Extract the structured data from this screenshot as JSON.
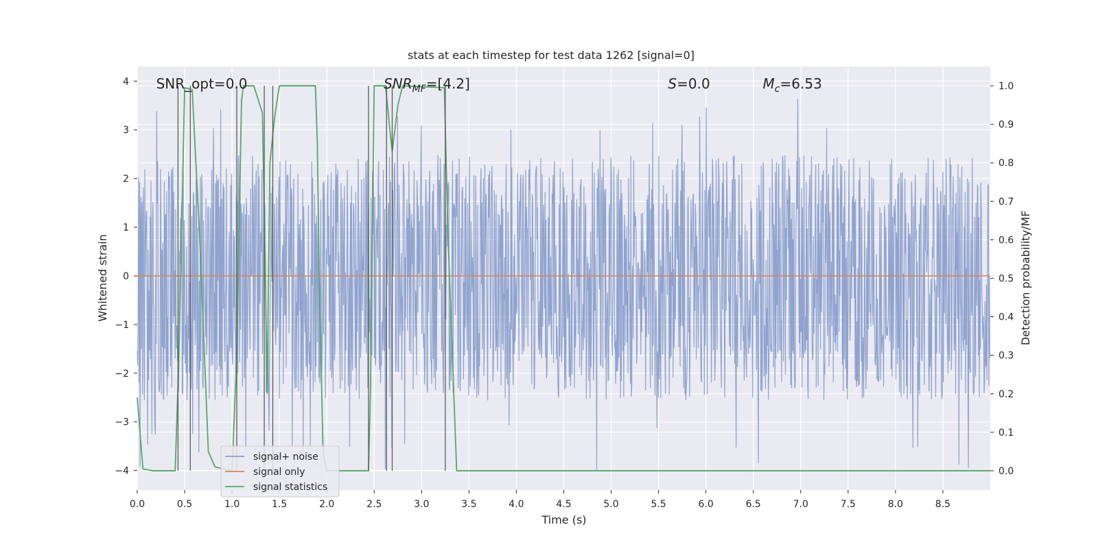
{
  "chart_data": {
    "type": "line",
    "title": "stats at each timestep for test data 1262 [signal=0]",
    "xlabel": "Time (s)",
    "ylabel": "Whitened strain",
    "ylabel_right": "Detection probability/MF",
    "xlim": [
      0.0,
      9.0
    ],
    "ylim": [
      -4.4,
      4.3
    ],
    "ylim_right": [
      -0.05,
      1.05
    ],
    "x_ticks": [
      0.0,
      0.5,
      1.0,
      1.5,
      2.0,
      2.5,
      3.0,
      3.5,
      4.0,
      4.5,
      5.0,
      5.5,
      6.0,
      6.5,
      7.0,
      7.5,
      8.0,
      8.5
    ],
    "x_tick_labels": [
      "0.0",
      "0.5",
      "1.0",
      "1.5",
      "2.0",
      "2.5",
      "3.0",
      "3.5",
      "4.0",
      "4.5",
      "5.0",
      "5.5",
      "6.0",
      "6.5",
      "7.0",
      "7.5",
      "8.0",
      "8.5"
    ],
    "y_ticks": [
      -4,
      -3,
      -2,
      -1,
      0,
      1,
      2,
      3,
      4
    ],
    "y_tick_labels": [
      "−4",
      "−3",
      "−2",
      "−1",
      "0",
      "1",
      "2",
      "3",
      "4"
    ],
    "y_ticks_right": [
      0.0,
      0.1,
      0.2,
      0.3,
      0.4,
      0.5,
      0.6,
      0.7,
      0.8,
      0.9,
      1.0
    ],
    "y_tick_labels_right": [
      "0.0",
      "0.1",
      "0.2",
      "0.3",
      "0.4",
      "0.5",
      "0.6",
      "0.7",
      "0.8",
      "0.9",
      "1.0"
    ],
    "grid": true,
    "legend_position": "lower-left",
    "annotations": [
      {
        "text": "SNR_opt=0.0",
        "x": 0.2,
        "y": 3.95
      },
      {
        "text": "SNR_MF=[4.2]",
        "x": 2.6,
        "y": 3.95
      },
      {
        "text": "S=0.0",
        "x": 5.6,
        "y": 3.95
      },
      {
        "text": "M_c=6.53",
        "x": 6.6,
        "y": 3.95
      }
    ],
    "series": [
      {
        "name": "signal+ noise",
        "axis": "left",
        "color": "#8a9fcb",
        "envelope": {
          "upper_typical": 1.55,
          "lower_typical": -1.6,
          "upper_peak": 3.65,
          "lower_peak": -4.05
        }
      },
      {
        "name": "signal only",
        "axis": "left",
        "color": "#dd8452",
        "x": [
          0.0,
          9.0
        ],
        "values": [
          0.0,
          0.0
        ]
      },
      {
        "name": "signal statistics",
        "axis": "right",
        "color": "#55a868",
        "x": [
          0.0,
          0.06,
          0.16,
          0.4,
          0.44,
          0.5,
          0.58,
          0.66,
          0.75,
          0.82,
          1.0,
          1.05,
          1.1,
          1.12,
          1.23,
          1.32,
          1.35,
          1.37,
          1.4,
          1.45,
          1.5,
          1.88,
          1.9,
          1.92,
          1.96,
          2.0,
          2.44,
          2.46,
          2.5,
          2.62,
          2.66,
          2.69,
          2.75,
          2.8,
          3.24,
          3.28,
          3.37,
          3.5,
          9.0
        ],
        "values": [
          0.19,
          0.005,
          0.0,
          0.0,
          0.3,
          0.995,
          0.99,
          0.6,
          0.05,
          0.01,
          0.0,
          0.3,
          0.96,
          1.0,
          1.0,
          0.93,
          0.55,
          0.2,
          0.8,
          0.92,
          1.0,
          1.0,
          0.85,
          0.5,
          0.05,
          0.0,
          0.0,
          0.2,
          1.0,
          1.0,
          0.9,
          0.83,
          0.95,
          1.0,
          0.995,
          0.6,
          0.0,
          0.0,
          0.0
        ]
      }
    ],
    "vertical_markers": [
      0.43,
      0.56,
      1.05,
      1.34,
      1.43,
      2.44,
      2.63,
      2.69,
      3.25
    ]
  },
  "colors": {
    "plot_bg": "#eaeaf2",
    "grid": "#ffffff",
    "marker_line": "#5a5a5a"
  }
}
